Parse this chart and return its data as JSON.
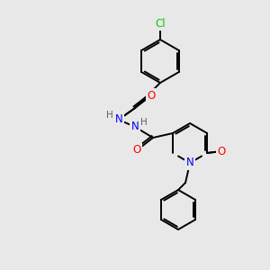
{
  "background_color": "#e8e8e8",
  "bond_color": "#000000",
  "atom_colors": {
    "N": "#0000ff",
    "O": "#ff0000",
    "Cl": "#00cc00",
    "C": "#000000",
    "H": "#606060"
  },
  "figsize": [
    3.0,
    3.0
  ],
  "dpi": 100,
  "lw": 1.4
}
